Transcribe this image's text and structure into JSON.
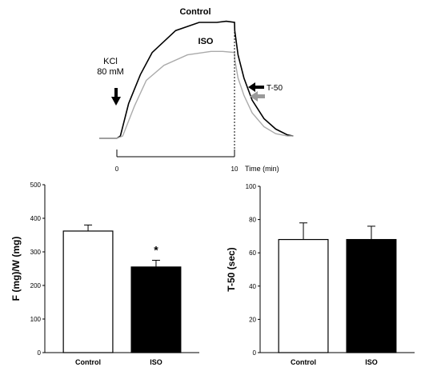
{
  "chart_data": [
    {
      "type": "line",
      "x_unit_label": "Time (min)",
      "x_ticks": [
        "0",
        "10"
      ],
      "xlim": [
        0,
        15
      ],
      "series": [
        {
          "name": "Control",
          "color": "#000000",
          "x": [
            -1.5,
            0,
            0.3,
            1,
            2,
            3,
            5,
            7,
            8.5,
            9.3,
            10,
            10.02,
            10.3,
            10.8,
            11.5,
            12.5,
            13.5,
            14.5,
            15
          ],
          "y": [
            0,
            0,
            0.02,
            0.3,
            0.55,
            0.74,
            0.93,
            1.0,
            1.0,
            1.01,
            1.0,
            0.93,
            0.72,
            0.52,
            0.33,
            0.17,
            0.08,
            0.03,
            0.02
          ]
        },
        {
          "name": "ISO",
          "color": "#aaaaaa",
          "x": [
            -1.5,
            0,
            0.5,
            1.5,
            2.5,
            4,
            6,
            8,
            9,
            10,
            10.02,
            10.3,
            10.8,
            11.5,
            12.5,
            13.5,
            14.5,
            15
          ],
          "y": [
            0,
            0,
            0.02,
            0.28,
            0.5,
            0.63,
            0.72,
            0.75,
            0.75,
            0.74,
            0.68,
            0.52,
            0.37,
            0.22,
            0.1,
            0.04,
            0.02,
            0.02
          ]
        }
      ],
      "annotations": {
        "stimulus": "KCl\n80 mM",
        "t50": "T-50"
      }
    },
    {
      "type": "bar",
      "categories": [
        "Control",
        "ISO"
      ],
      "values": [
        362,
        255
      ],
      "errors": [
        18,
        20
      ],
      "colors": [
        "#ffffff",
        "#000000"
      ],
      "ylabel": "F (mg)/W (mg)",
      "ylim": [
        0,
        500
      ],
      "yticks": [
        0,
        100,
        200,
        300,
        400,
        500
      ],
      "significance": [
        "",
        "*"
      ]
    },
    {
      "type": "bar",
      "categories": [
        "Control",
        "ISO"
      ],
      "values": [
        68,
        68
      ],
      "errors": [
        10,
        8
      ],
      "colors": [
        "#ffffff",
        "#000000"
      ],
      "ylabel": "T-50 (sec)",
      "ylim": [
        0,
        100
      ],
      "yticks": [
        0,
        20,
        40,
        60,
        80,
        100
      ]
    }
  ]
}
